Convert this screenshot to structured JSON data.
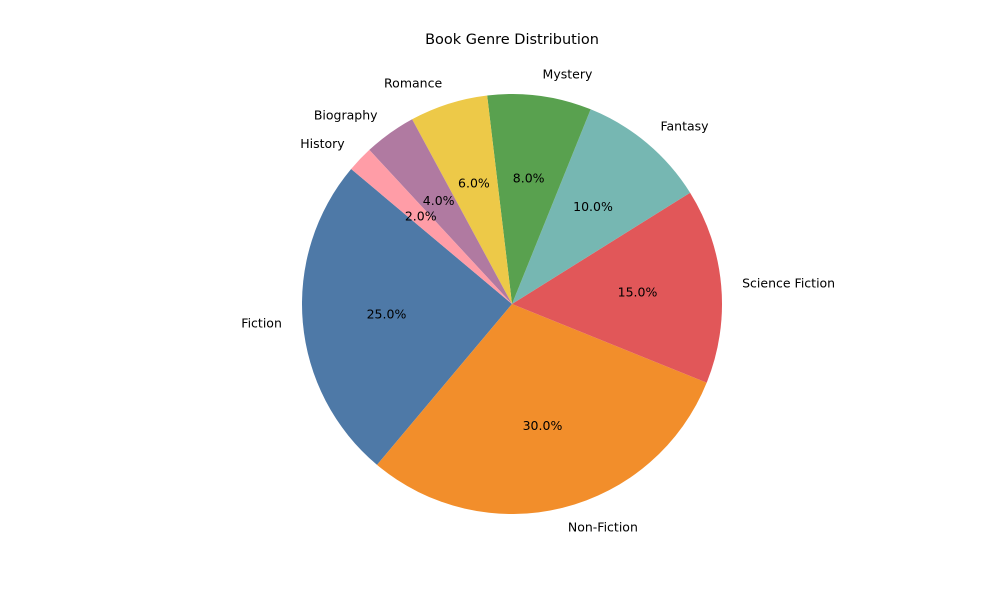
{
  "chart_data": {
    "type": "pie",
    "title": "Book Genre Distribution",
    "start_angle_deg": 140,
    "direction": "counterclockwise",
    "label_format": "{pct}%",
    "slices": [
      {
        "label": "Fiction",
        "value": 25.0,
        "pct_label": "25.0%",
        "color": "#4e79a7"
      },
      {
        "label": "Non-Fiction",
        "value": 30.0,
        "pct_label": "30.0%",
        "color": "#f28e2b"
      },
      {
        "label": "Science Fiction",
        "value": 15.0,
        "pct_label": "15.0%",
        "color": "#e15759"
      },
      {
        "label": "Fantasy",
        "value": 10.0,
        "pct_label": "10.0%",
        "color": "#76b7b2"
      },
      {
        "label": "Mystery",
        "value": 8.0,
        "pct_label": "8.0%",
        "color": "#59a14f"
      },
      {
        "label": "Romance",
        "value": 6.0,
        "pct_label": "6.0%",
        "color": "#edc948"
      },
      {
        "label": "Biography",
        "value": 4.0,
        "pct_label": "4.0%",
        "color": "#b07aa1"
      },
      {
        "label": "History",
        "value": 2.0,
        "pct_label": "2.0%",
        "color": "#ff9da7"
      }
    ]
  }
}
